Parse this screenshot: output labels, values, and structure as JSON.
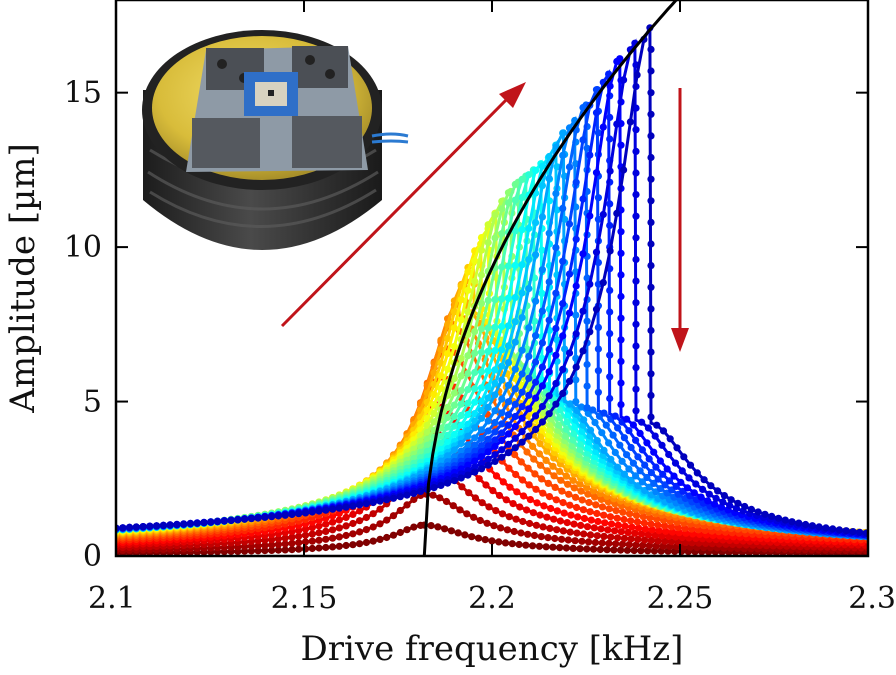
{
  "chart_data": {
    "type": "line",
    "title": "",
    "xlabel": "Drive frequency [kHz]",
    "ylabel": "Amplitude [µm]",
    "xlim": [
      2.1,
      2.3
    ],
    "ylim": [
      0,
      18
    ],
    "xticks": [
      "2.1",
      "2.15",
      "2.2",
      "2.25",
      "2.3"
    ],
    "yticks": [
      "0",
      "5",
      "10",
      "15"
    ],
    "xtick_values": [
      2.1,
      2.15,
      2.2,
      2.25,
      2.3
    ],
    "ytick_values": [
      0,
      5,
      10,
      15
    ],
    "grid": false,
    "legend": "none",
    "series_count": 30,
    "colormap": "jet (dark red = lowest drive, blue = highest drive)",
    "peak_frequency_kHz": [
      2.182,
      2.1825,
      2.183,
      2.184,
      2.185,
      2.1865,
      2.188,
      2.1895,
      2.191,
      2.193,
      2.195,
      2.197,
      2.199,
      2.201,
      2.203,
      2.205,
      2.207,
      2.209,
      2.211,
      2.213,
      2.215,
      2.217,
      2.219,
      2.222,
      2.225,
      2.228,
      2.231,
      2.234,
      2.238,
      2.242
    ],
    "peak_amplitude_um": [
      1.0,
      2.0,
      3.0,
      4.0,
      4.9,
      5.8,
      6.7,
      7.5,
      8.2,
      8.9,
      9.5,
      10.1,
      10.6,
      11.1,
      11.5,
      11.8,
      12.1,
      12.3,
      12.5,
      12.7,
      12.9,
      13.3,
      13.7,
      14.1,
      14.6,
      15.1,
      15.6,
      16.1,
      16.6,
      17.1
    ],
    "jump_down_amplitude_um": [
      1.0,
      2.0,
      3.0,
      4.0,
      4.9,
      5.8,
      6.7,
      7.4,
      7.8,
      8.0,
      7.9,
      7.7,
      7.4,
      7.1,
      6.8,
      6.5,
      6.2,
      6.0,
      5.8,
      5.6,
      5.4,
      5.2,
      5.0,
      4.9,
      4.8,
      4.7,
      4.6,
      4.5,
      4.4,
      4.3
    ],
    "backbone_curve": {
      "start_frequency_kHz": 2.182,
      "end_frequency_kHz": 2.249,
      "end_amplitude_um": 18.0
    },
    "annotations": [
      {
        "kind": "arrow",
        "direction": "frequency sweep up",
        "color": "#c0141a"
      },
      {
        "kind": "arrow",
        "direction": "jump down",
        "color": "#c0141a"
      },
      {
        "kind": "inset-photo",
        "subject": "device on yellow disc mount"
      }
    ]
  }
}
